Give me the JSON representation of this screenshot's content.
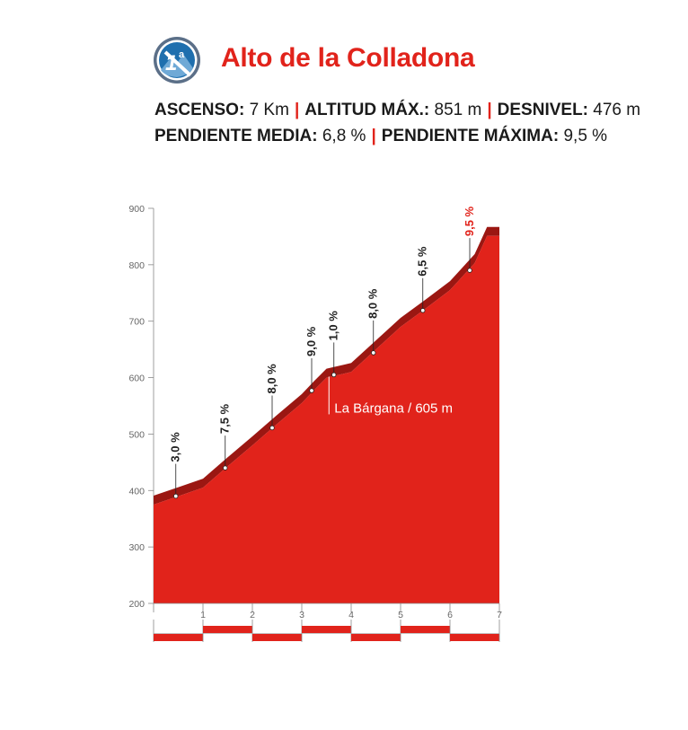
{
  "header": {
    "title": "Alto de la Colladona",
    "category": "1ª",
    "category_icon": "mountain-category-badge-icon"
  },
  "stats": {
    "ascenso_label": "ASCENSO:",
    "ascenso_value": "7 Km",
    "altitud_label": "ALTITUD MÁX.:",
    "altitud_value": "851 m",
    "desnivel_label": "DESNIVEL:",
    "desnivel_value": "476 m",
    "pendiente_media_label": "PENDIENTE MEDIA:",
    "pendiente_media_value": "6,8 %",
    "pendiente_maxima_label": "PENDIENTE MÁXIMA:",
    "pendiente_maxima_value": "9,5 %",
    "separator": "|"
  },
  "colors": {
    "profile_fill": "#e1231b",
    "profile_edge": "#9b1712",
    "accent": "#e1231b",
    "max_gradient_label": "#e1231b"
  },
  "chart_data": {
    "type": "area",
    "x_unit": "km",
    "y_unit": "m",
    "xlim": [
      0,
      7
    ],
    "ylim": [
      200,
      900
    ],
    "x_ticks": [
      "1",
      "2",
      "3",
      "4",
      "5",
      "6",
      "7"
    ],
    "y_ticks": [
      "900",
      "800",
      "700",
      "600",
      "500",
      "400",
      "300",
      "200"
    ],
    "profile": [
      {
        "km": 0.0,
        "alt": 375
      },
      {
        "km": 0.5,
        "alt": 390
      },
      {
        "km": 1.0,
        "alt": 405
      },
      {
        "km": 1.5,
        "alt": 443
      },
      {
        "km": 2.0,
        "alt": 480
      },
      {
        "km": 2.5,
        "alt": 518
      },
      {
        "km": 3.0,
        "alt": 555
      },
      {
        "km": 3.25,
        "alt": 578
      },
      {
        "km": 3.5,
        "alt": 600
      },
      {
        "km": 4.0,
        "alt": 610
      },
      {
        "km": 4.5,
        "alt": 650
      },
      {
        "km": 5.0,
        "alt": 690
      },
      {
        "km": 5.5,
        "alt": 722
      },
      {
        "km": 6.0,
        "alt": 755
      },
      {
        "km": 6.5,
        "alt": 803
      },
      {
        "km": 6.75,
        "alt": 851
      },
      {
        "km": 7.0,
        "alt": 851
      }
    ],
    "gradients": [
      {
        "label": "3,0 %",
        "km": 0.45,
        "alt": 390,
        "max": false
      },
      {
        "label": "7,5 %",
        "km": 1.45,
        "alt": 440,
        "max": false
      },
      {
        "label": "8,0 %",
        "km": 2.4,
        "alt": 511,
        "max": false
      },
      {
        "label": "9,0 %",
        "km": 3.2,
        "alt": 577,
        "max": false
      },
      {
        "label": "1,0 %",
        "km": 3.65,
        "alt": 605,
        "max": false
      },
      {
        "label": "8,0 %",
        "km": 4.45,
        "alt": 644,
        "max": false
      },
      {
        "label": "6,5 %",
        "km": 5.45,
        "alt": 719,
        "max": false
      },
      {
        "label": "9,5 %",
        "km": 6.4,
        "alt": 790,
        "max": true
      }
    ],
    "annotations": [
      {
        "text": "La Bárgana / 605 m",
        "km": 3.55,
        "alt": 605
      }
    ],
    "km_bar_segments": 7
  }
}
